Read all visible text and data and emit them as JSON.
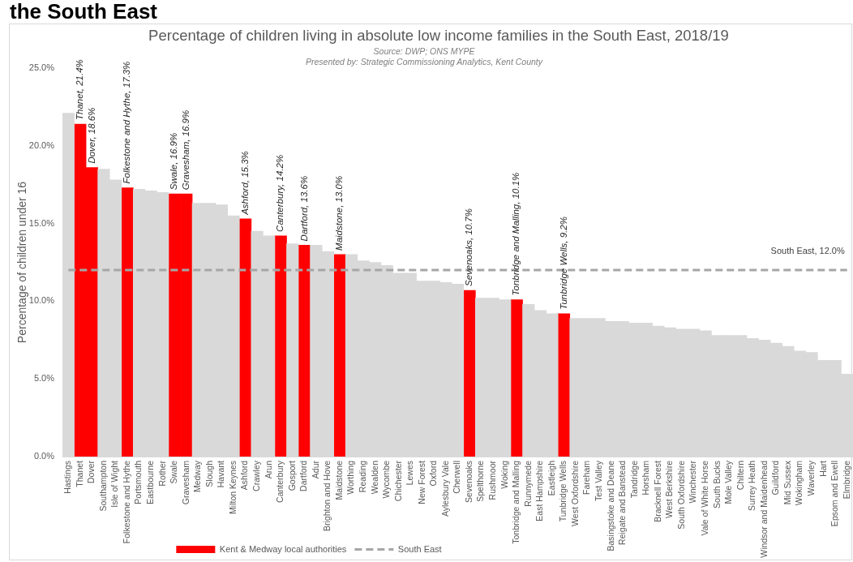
{
  "chart_data": {
    "type": "bar",
    "title": "Percentage of children living in absolute low income families in the South East, 2018/19",
    "ylabel": "Percentage of children under 16",
    "categories": [
      "Hastings",
      "Thanet",
      "Dover",
      "Southampton",
      "Isle of Wight",
      "Folkestone and Hythe",
      "Portsmouth",
      "Eastbourne",
      "Rother",
      "Swale",
      "Gravesham",
      "Medway",
      "Slough",
      "Havant",
      "Milton Keynes",
      "Ashford",
      "Crawley",
      "Arun",
      "Canterbury",
      "Gosport",
      "Dartford",
      "Adur",
      "Brighton and Hove",
      "Maidstone",
      "Worthing",
      "Reading",
      "Wealden",
      "Wycombe",
      "Chichester",
      "Lewes",
      "New Forest",
      "Oxford",
      "Aylesbury Vale",
      "Cherwell",
      "Sevenoaks",
      "Spelthorne",
      "Rushmoor",
      "Woking",
      "Tonbridge and Malling",
      "Runnymede",
      "East Hampshire",
      "Eastleigh",
      "Tunbridge Wells",
      "West Oxfordshire",
      "Fareham",
      "Test Valley",
      "Basingstoke and Deane",
      "Reigate and Banstead",
      "Tandridge",
      "Horsham",
      "Bracknell Forest",
      "West Berkshire",
      "South Oxfordshire",
      "Winchester",
      "Vale of White Horse",
      "South Bucks",
      "Mole Valley",
      "Chiltern",
      "Surrey Heath",
      "Windsor and Maidenhead",
      "Guildford",
      "Mid Sussex",
      "Wokingham",
      "Waverley",
      "Hart",
      "Epsom and Ewell",
      "Elmbridge"
    ],
    "stacked": true,
    "series": [
      {
        "color": "#d9d9d9",
        "values": [
          22.1,
          null,
          null,
          18.5,
          17.8,
          null,
          17.2,
          17.1,
          17.0,
          null,
          null,
          16.3,
          16.3,
          16.2,
          15.5,
          null,
          14.5,
          14.2,
          null,
          13.7,
          null,
          13.6,
          13.2,
          null,
          13.0,
          12.6,
          12.5,
          12.3,
          11.8,
          11.8,
          11.3,
          11.3,
          11.2,
          11.1,
          null,
          10.2,
          10.2,
          10.1,
          null,
          9.8,
          9.4,
          9.2,
          null,
          8.9,
          8.9,
          8.9,
          8.7,
          8.7,
          8.6,
          8.6,
          8.4,
          8.3,
          8.2,
          8.2,
          8.1,
          7.8,
          7.8,
          7.8,
          7.6,
          7.5,
          7.3,
          7.1,
          6.8,
          6.7,
          6.2,
          6.2,
          5.3
        ]
      },
      {
        "name": "Kent & Medway local authorities",
        "color": "#ff0000",
        "values": [
          null,
          21.4,
          18.6,
          null,
          null,
          17.3,
          null,
          null,
          null,
          16.9,
          16.9,
          null,
          null,
          null,
          null,
          15.3,
          null,
          null,
          14.2,
          null,
          13.6,
          null,
          null,
          13.0,
          null,
          null,
          null,
          null,
          null,
          null,
          null,
          null,
          null,
          null,
          10.7,
          null,
          null,
          null,
          10.1,
          null,
          null,
          null,
          9.2,
          null,
          null,
          null,
          null,
          null,
          null,
          null,
          null,
          null,
          null,
          null,
          null,
          null,
          null,
          null,
          null,
          null,
          null,
          null,
          null,
          null,
          null,
          null,
          null
        ],
        "value_labels": [
          null,
          "Thanet, 21.4%",
          "Dover, 18.6%",
          null,
          null,
          "Folkestone and Hythe, 17.3%",
          null,
          null,
          null,
          "Swale, 16.9%",
          "Gravesham, 16.9%",
          null,
          null,
          null,
          null,
          "Ashford, 15.3%",
          null,
          null,
          "Canterbury, 14.2%",
          null,
          "Dartford, 13.6%",
          null,
          null,
          "Maidstone, 13.0%",
          null,
          null,
          null,
          null,
          null,
          null,
          null,
          null,
          null,
          null,
          "Sevenoaks, 10.7%",
          null,
          null,
          null,
          "Tonbridge and Malling, 10.1%",
          null,
          null,
          null,
          "Tunbridge Wells, 9.2%",
          null,
          null,
          null,
          null,
          null,
          null,
          null,
          null,
          null,
          null,
          null,
          null,
          null,
          null,
          null,
          null,
          null,
          null,
          null,
          null,
          null,
          null,
          null,
          null
        ]
      },
      {
        "name": "South East",
        "type": "line",
        "color": "#a6a6a6",
        "line_style": "dashed",
        "marker": "none",
        "values": [
          12.0,
          12.0,
          12.0,
          12.0,
          12.0,
          12.0,
          12.0,
          12.0,
          12.0,
          12.0,
          12.0,
          12.0,
          12.0,
          12.0,
          12.0,
          12.0,
          12.0,
          12.0,
          12.0,
          12.0,
          12.0,
          12.0,
          12.0,
          12.0,
          12.0,
          12.0,
          12.0,
          12.0,
          12.0,
          12.0,
          12.0,
          12.0,
          12.0,
          12.0,
          12.0,
          12.0,
          12.0,
          12.0,
          12.0,
          12.0,
          12.0,
          12.0,
          12.0,
          12.0,
          12.0,
          12.0,
          12.0,
          12.0,
          12.0,
          12.0,
          12.0,
          12.0,
          12.0,
          12.0,
          12.0,
          12.0,
          12.0,
          12.0,
          12.0,
          12.0,
          12.0,
          12.0,
          12.0,
          12.0,
          12.0,
          12.0,
          12.0
        ]
      }
    ],
    "ylim": [
      0,
      25
    ],
    "yticks": [
      {
        "value": 0,
        "label": "0.0%"
      },
      {
        "value": 5,
        "label": "5.0%"
      },
      {
        "value": 10,
        "label": "10.0%"
      },
      {
        "value": 15,
        "label": "15.0%"
      },
      {
        "value": 20,
        "label": "20.0%"
      },
      {
        "value": 25,
        "label": "25.0%"
      }
    ],
    "legend": "bottom",
    "annotations": [
      "the South East",
      "Source: DWP; ONS MYPE",
      "Presented by: Strategic Commissioning Analytics, Kent County",
      {
        "text": "South East, 12.0%",
        "x": "Elmbridge",
        "y": 12.0
      }
    ]
  }
}
